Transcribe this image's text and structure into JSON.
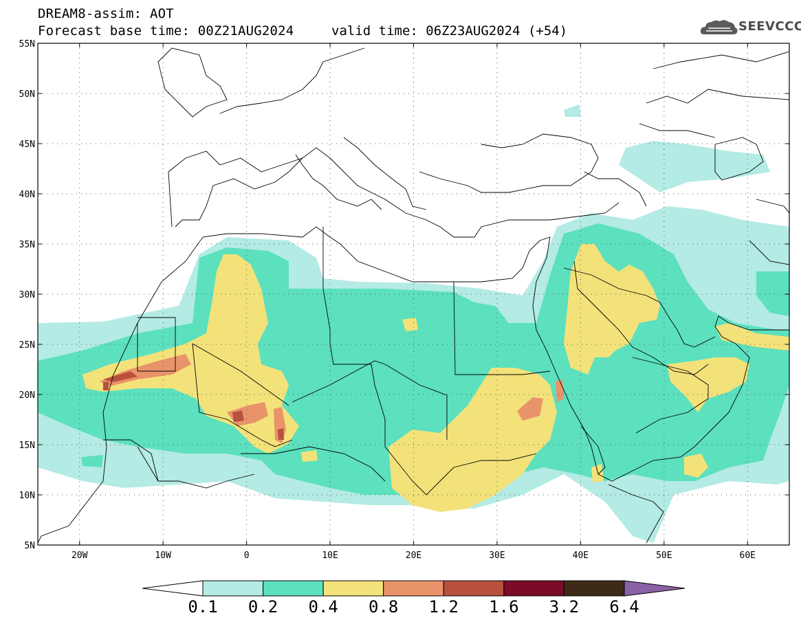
{
  "header": {
    "title": "DREAM8-assim: AOT",
    "forecast_base": "Forecast base time: 00Z21AUG2024",
    "valid_time": "valid time: 06Z23AUG2024 (+54)",
    "logo_text": "SEEVCCC"
  },
  "map": {
    "lon_range": [
      -25,
      65
    ],
    "lat_range": [
      5,
      55
    ],
    "lon_ticks": [
      {
        "value": -20,
        "label": "20W"
      },
      {
        "value": -10,
        "label": "10W"
      },
      {
        "value": 0,
        "label": "0"
      },
      {
        "value": 10,
        "label": "10E"
      },
      {
        "value": 20,
        "label": "20E"
      },
      {
        "value": 30,
        "label": "30E"
      },
      {
        "value": 40,
        "label": "40E"
      },
      {
        "value": 50,
        "label": "50E"
      },
      {
        "value": 60,
        "label": "60E"
      }
    ],
    "lat_ticks": [
      {
        "value": 5,
        "label": "5N"
      },
      {
        "value": 10,
        "label": "10N"
      },
      {
        "value": 15,
        "label": "15N"
      },
      {
        "value": 20,
        "label": "20N"
      },
      {
        "value": 25,
        "label": "25N"
      },
      {
        "value": 30,
        "label": "30N"
      },
      {
        "value": 35,
        "label": "35N"
      },
      {
        "value": 40,
        "label": "40N"
      },
      {
        "value": 45,
        "label": "45N"
      },
      {
        "value": 50,
        "label": "50N"
      },
      {
        "value": 55,
        "label": "55N"
      }
    ],
    "grid": "dotted"
  },
  "colorbar": {
    "levels": [
      "0.1",
      "0.2",
      "0.4",
      "0.8",
      "1.2",
      "1.6",
      "3.2",
      "6.4"
    ],
    "colors": [
      "#ffffff",
      "#b4ebe4",
      "#5ce0be",
      "#f3e27a",
      "#e9936a",
      "#b8503e",
      "#7a0c2a",
      "#3f2a18",
      "#8a62a8"
    ]
  }
}
